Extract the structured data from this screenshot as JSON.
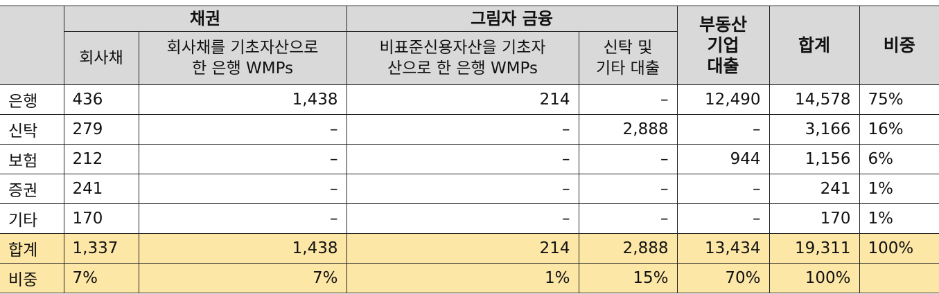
{
  "table": {
    "header_top": {
      "bonds": "채권",
      "shadow": "그림자 금융",
      "realestate": [
        "부동산",
        "기업",
        "대출"
      ],
      "total": "합계",
      "share": "비중"
    },
    "header_sub": [
      [
        "회사채"
      ],
      [
        "회사채를 기초자산으로",
        "한 은행 WMPs"
      ],
      [
        "비표준신용자산을 기초자",
        "산으로 한 은행 WMPs"
      ],
      [
        "신탁 및",
        "기타 대출"
      ]
    ],
    "rows": [
      [
        "은행",
        "436",
        "1,438",
        "214",
        "–",
        "12,490",
        "14,578",
        "75%"
      ],
      [
        "신탁",
        "279",
        "–",
        "–",
        "2,888",
        "–",
        "3,166",
        "16%"
      ],
      [
        "보험",
        "212",
        "–",
        "–",
        "–",
        "944",
        "1,156",
        "6%"
      ],
      [
        "증권",
        "241",
        "–",
        "–",
        "–",
        "–",
        "241",
        "1%"
      ],
      [
        "기타",
        "170",
        "–",
        "–",
        "–",
        "–",
        "170",
        "1%"
      ],
      [
        "합계",
        "1,337",
        "1,438",
        "214",
        "2,888",
        "13,434",
        "19,311",
        "100%"
      ],
      [
        "비중",
        "7%",
        "7%",
        "1%",
        "15%",
        "70%",
        "100%",
        ""
      ]
    ]
  }
}
